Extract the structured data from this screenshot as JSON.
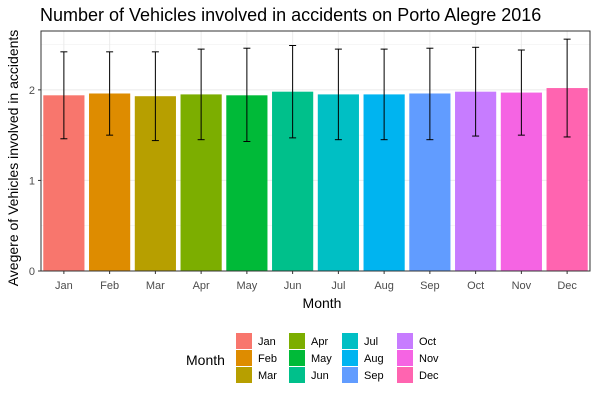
{
  "chart_data": {
    "type": "bar",
    "title": "Number of Vehicles involved in accidents on Porto Alegre 2016",
    "xlabel": "Month",
    "ylabel": "Avegere of Vehicles involved in accidents",
    "categories": [
      "Jan",
      "Feb",
      "Mar",
      "Apr",
      "May",
      "Jun",
      "Jul",
      "Aug",
      "Sep",
      "Oct",
      "Nov",
      "Dec"
    ],
    "values": [
      1.94,
      1.96,
      1.93,
      1.95,
      1.94,
      1.98,
      1.95,
      1.95,
      1.96,
      1.98,
      1.97,
      2.02
    ],
    "error_low": [
      1.46,
      1.5,
      1.44,
      1.45,
      1.43,
      1.47,
      1.45,
      1.45,
      1.45,
      1.49,
      1.5,
      1.48
    ],
    "error_high": [
      2.42,
      2.42,
      2.42,
      2.45,
      2.46,
      2.49,
      2.45,
      2.45,
      2.46,
      2.47,
      2.44,
      2.56
    ],
    "colors": [
      "#F8766D",
      "#DE8C00",
      "#B79F00",
      "#7CAE00",
      "#00BA38",
      "#00C08B",
      "#00BFC4",
      "#00B4F0",
      "#619CFF",
      "#C77CFF",
      "#F564E3",
      "#FF64B0"
    ],
    "ylim": [
      0,
      2.65
    ],
    "yticks": [
      0,
      1,
      2
    ],
    "grid": true,
    "legend": {
      "title": "Month",
      "placement": "bottom",
      "entries": [
        "Jan",
        "Feb",
        "Mar",
        "Apr",
        "May",
        "Jun",
        "Jul",
        "Aug",
        "Sep",
        "Oct",
        "Nov",
        "Dec"
      ]
    }
  }
}
